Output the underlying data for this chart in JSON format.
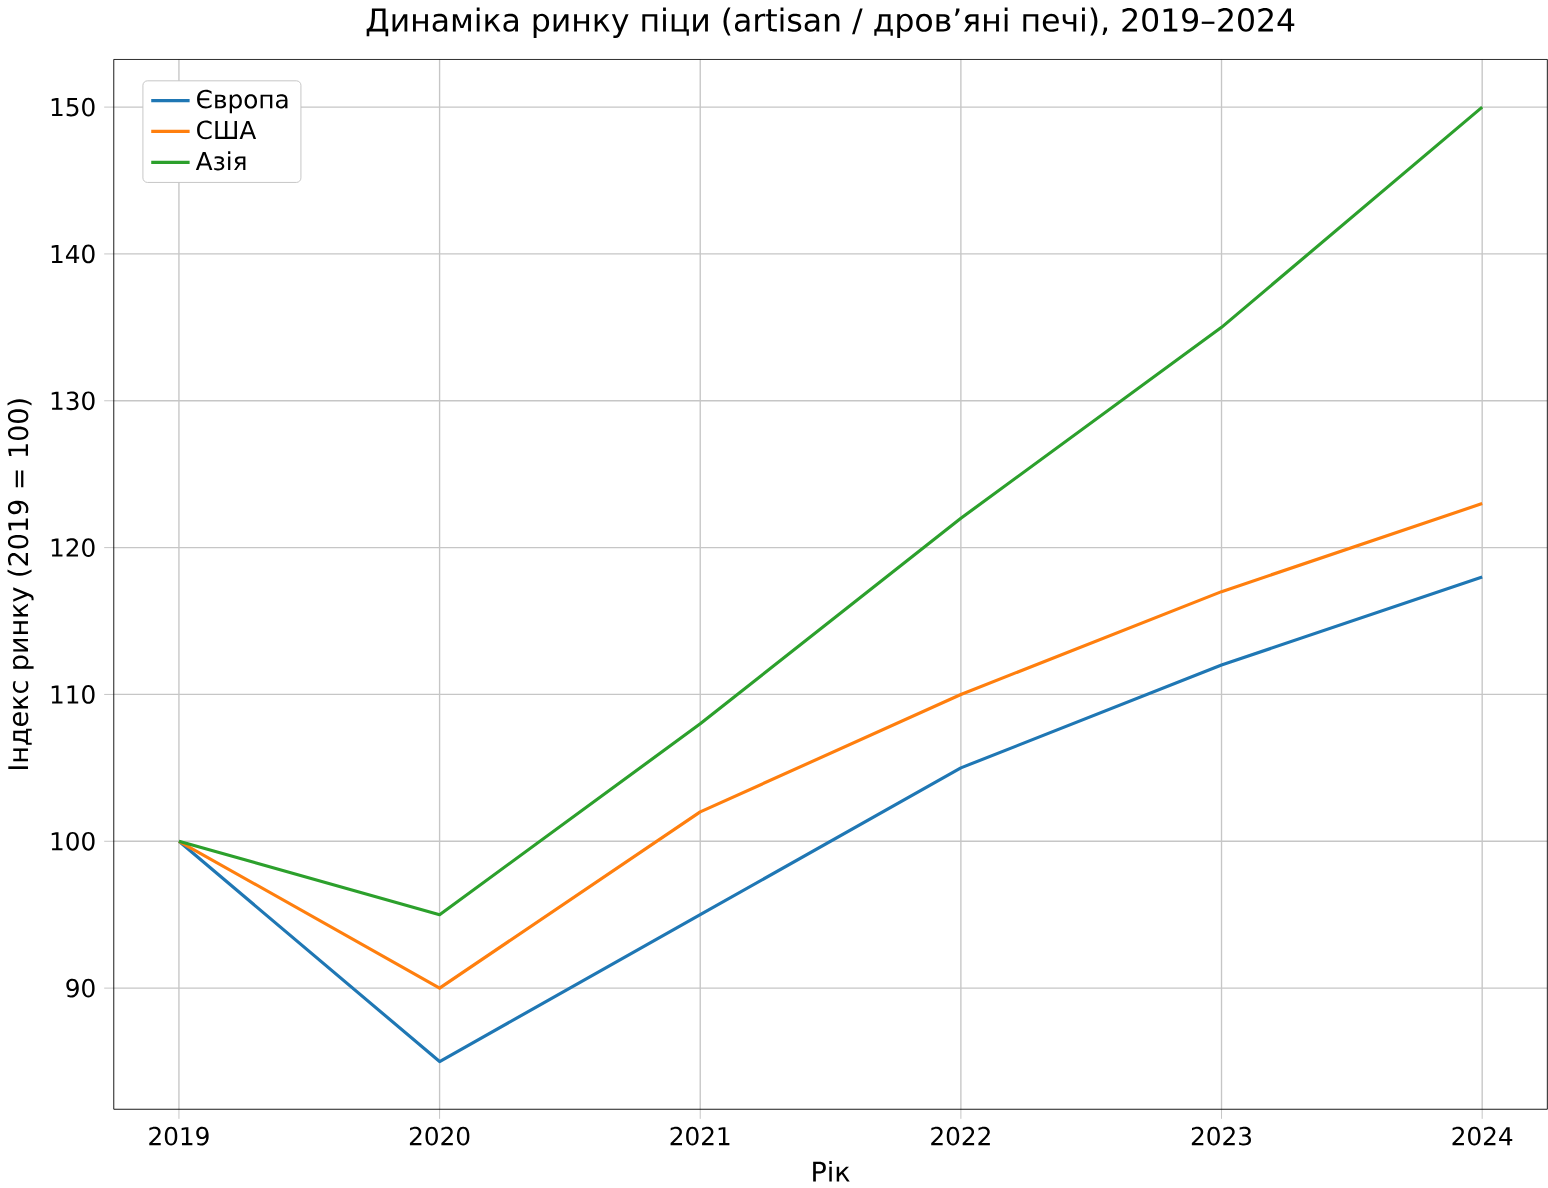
{
  "chart_data": {
    "type": "line",
    "title": "Динаміка ринку піци (artisan / дров’яні печі), 2019–2024",
    "xlabel": "Рік",
    "ylabel": "Індекс ринку (2019 = 100)",
    "x": [
      2019,
      2020,
      2021,
      2022,
      2023,
      2024
    ],
    "series": [
      {
        "name": "Європа",
        "color": "#1f77b4",
        "values": [
          100,
          85,
          95,
          105,
          112,
          118
        ]
      },
      {
        "name": "США",
        "color": "#ff7f0e",
        "values": [
          100,
          90,
          102,
          110,
          117,
          123
        ]
      },
      {
        "name": "Азія",
        "color": "#2ca02c",
        "values": [
          100,
          95,
          108,
          122,
          135,
          150
        ]
      }
    ],
    "xlim": [
      2018.75,
      2024.25
    ],
    "ylim": [
      81.75,
      153.25
    ],
    "xticks": [
      2019,
      2020,
      2021,
      2022,
      2023,
      2024
    ],
    "yticks": [
      90,
      100,
      110,
      120,
      130,
      140,
      150
    ],
    "grid": true,
    "legend": "top left",
    "marker": "none",
    "line_style": "solid"
  }
}
